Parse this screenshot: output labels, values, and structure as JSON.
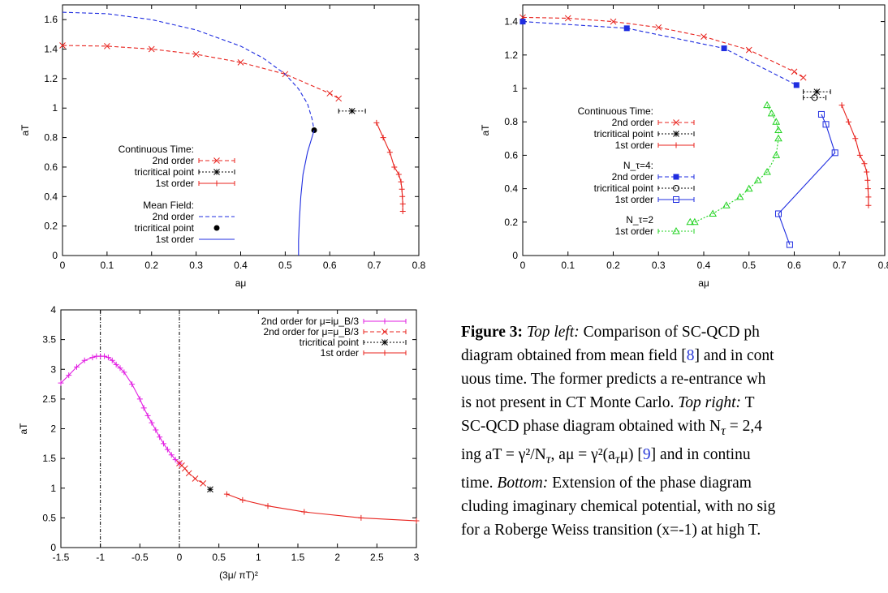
{
  "chart_data": [
    {
      "id": "topleft",
      "type": "line",
      "xlabel": "aμ",
      "ylabel": "aT",
      "xlim": [
        0,
        0.8
      ],
      "ylim": [
        0,
        1.7
      ],
      "xticks": [
        0,
        0.1,
        0.2,
        0.3,
        0.4,
        0.5,
        0.6,
        0.7,
        0.8
      ],
      "yticks": [
        0,
        0.2,
        0.4,
        0.6,
        0.8,
        1,
        1.2,
        1.4,
        1.6
      ],
      "legend_groups": [
        {
          "title": "Continuous Time:",
          "entries": [
            "2nd order",
            "tricritical point",
            "1st order"
          ]
        },
        {
          "title": "Mean Field:",
          "entries": [
            "2nd order",
            "tricritical point",
            "1st order"
          ]
        }
      ],
      "series": [
        {
          "name": "2nd order",
          "group": "Continuous Time",
          "color": "#e8231e",
          "style": "dashed",
          "marker": "x",
          "x": [
            0,
            0.1,
            0.2,
            0.3,
            0.4,
            0.5,
            0.6,
            0.62
          ],
          "y": [
            1.425,
            1.42,
            1.4,
            1.365,
            1.31,
            1.23,
            1.1,
            1.065
          ]
        },
        {
          "name": "tricritical point",
          "group": "Continuous Time",
          "color": "#000000",
          "style": "dotted",
          "marker": "star",
          "x": [
            0.65
          ],
          "y": [
            0.98
          ],
          "xerr": [
            0.03
          ]
        },
        {
          "name": "1st order",
          "group": "Continuous Time",
          "color": "#e8231e",
          "style": "solid",
          "marker": "plus",
          "x": [
            0.705,
            0.72,
            0.735,
            0.745,
            0.755,
            0.76,
            0.762,
            0.763,
            0.764,
            0.764
          ],
          "y": [
            0.9,
            0.8,
            0.7,
            0.6,
            0.55,
            0.5,
            0.45,
            0.4,
            0.35,
            0.3
          ]
        },
        {
          "name": "2nd order",
          "group": "Mean Field",
          "color": "#1f2de0",
          "style": "dashed",
          "marker": "none",
          "x": [
            0,
            0.1,
            0.2,
            0.3,
            0.4,
            0.45,
            0.5,
            0.53,
            0.55,
            0.56,
            0.565
          ],
          "y": [
            1.65,
            1.64,
            1.6,
            1.53,
            1.42,
            1.34,
            1.23,
            1.13,
            1.03,
            0.93,
            0.85
          ]
        },
        {
          "name": "tricritical point",
          "group": "Mean Field",
          "color": "#000000",
          "style": "none",
          "marker": "dot",
          "x": [
            0.565
          ],
          "y": [
            0.85
          ]
        },
        {
          "name": "1st order",
          "group": "Mean Field",
          "color": "#1f2de0",
          "style": "solid",
          "marker": "none",
          "x": [
            0.565,
            0.55,
            0.54,
            0.535,
            0.532,
            0.53,
            0.53
          ],
          "y": [
            0.85,
            0.7,
            0.55,
            0.4,
            0.25,
            0.1,
            0
          ]
        }
      ]
    },
    {
      "id": "topright",
      "type": "line",
      "xlabel": "aμ",
      "ylabel": "aT",
      "xlim": [
        0,
        0.8
      ],
      "ylim": [
        0,
        1.5
      ],
      "xticks": [
        0,
        0.1,
        0.2,
        0.3,
        0.4,
        0.5,
        0.6,
        0.7,
        0.8
      ],
      "yticks": [
        0,
        0.2,
        0.4,
        0.6,
        0.8,
        1,
        1.2,
        1.4
      ],
      "legend_groups": [
        {
          "title": "Continuous Time:",
          "entries": [
            "2nd order",
            "tricritical point",
            "1st order"
          ]
        },
        {
          "title": "N_τ=4:",
          "entries": [
            "2nd order",
            "tricritical point",
            "1st order"
          ]
        },
        {
          "title": "N_τ=2",
          "entries": [
            "1st order"
          ]
        }
      ],
      "series": [
        {
          "name": "2nd order",
          "group": "Continuous Time",
          "color": "#e8231e",
          "style": "dashed",
          "marker": "x",
          "x": [
            0,
            0.1,
            0.2,
            0.3,
            0.4,
            0.5,
            0.6,
            0.62
          ],
          "y": [
            1.425,
            1.42,
            1.4,
            1.365,
            1.31,
            1.23,
            1.1,
            1.065
          ]
        },
        {
          "name": "tricritical point",
          "group": "Continuous Time",
          "color": "#000000",
          "style": "dotted",
          "marker": "star",
          "x": [
            0.65
          ],
          "y": [
            0.98
          ],
          "xerr": [
            0.03
          ]
        },
        {
          "name": "1st order",
          "group": "Continuous Time",
          "color": "#e8231e",
          "style": "solid",
          "marker": "plus",
          "x": [
            0.705,
            0.72,
            0.735,
            0.745,
            0.755,
            0.76,
            0.762,
            0.763,
            0.764,
            0.764
          ],
          "y": [
            0.9,
            0.8,
            0.7,
            0.6,
            0.55,
            0.5,
            0.45,
            0.4,
            0.35,
            0.3
          ]
        },
        {
          "name": "2nd order",
          "group": "N_τ=4",
          "color": "#1f2de0",
          "style": "dashed",
          "marker": "filled-square",
          "x": [
            0,
            0.23,
            0.445,
            0.605
          ],
          "y": [
            1.4,
            1.36,
            1.24,
            1.02
          ]
        },
        {
          "name": "tricritical point",
          "group": "N_τ=4",
          "color": "#000000",
          "style": "dotted",
          "marker": "circle",
          "x": [
            0.645
          ],
          "y": [
            0.945
          ],
          "xerr": [
            0.025
          ]
        },
        {
          "name": "1st order",
          "group": "N_τ=4",
          "color": "#1f2de0",
          "style": "solid",
          "marker": "open-square",
          "x": [
            0.66,
            0.67,
            0.69,
            0.565,
            0.59
          ],
          "y": [
            0.845,
            0.785,
            0.615,
            0.25,
            0.065
          ]
        },
        {
          "name": "1st order",
          "group": "N_τ=2",
          "color": "#22d322",
          "style": "dotted",
          "marker": "triangle",
          "x": [
            0.54,
            0.55,
            0.56,
            0.565,
            0.565,
            0.56,
            0.54,
            0.52,
            0.5,
            0.48,
            0.45,
            0.42,
            0.38,
            0.37
          ],
          "y": [
            0.9,
            0.85,
            0.8,
            0.75,
            0.7,
            0.6,
            0.5,
            0.45,
            0.4,
            0.35,
            0.3,
            0.25,
            0.2,
            0.2
          ]
        }
      ]
    },
    {
      "id": "bottom",
      "type": "line",
      "xlabel": "(3μ/ πT)²",
      "ylabel": "aT",
      "xlim": [
        -1.5,
        3
      ],
      "ylim": [
        0,
        4
      ],
      "xticks": [
        -1.5,
        -1,
        -0.5,
        0,
        0.5,
        1,
        1.5,
        2,
        2.5,
        3
      ],
      "yticks": [
        0,
        0.5,
        1,
        1.5,
        2,
        2.5,
        3,
        3.5,
        4
      ],
      "vlines": [
        -1,
        0
      ],
      "legend": [
        "2nd order for μ=iμ_B/3",
        "2nd order for μ=μ_B/3",
        "tricritical point",
        "1st order"
      ],
      "series": [
        {
          "name": "2nd order for μ=iμ_B/3",
          "color": "#e21ee2",
          "style": "solid",
          "marker": "plus",
          "x": [
            -1.5,
            -1.4,
            -1.3,
            -1.2,
            -1.1,
            -1.05,
            -1.0,
            -0.95,
            -0.9,
            -0.85,
            -0.8,
            -0.75,
            -0.7,
            -0.6,
            -0.5,
            -0.45,
            -0.4,
            -0.35,
            -0.3,
            -0.25,
            -0.2,
            -0.15,
            -0.1,
            -0.05,
            0
          ],
          "y": [
            2.77,
            2.9,
            3.04,
            3.15,
            3.2,
            3.22,
            3.22,
            3.22,
            3.2,
            3.15,
            3.08,
            3.02,
            2.95,
            2.75,
            2.5,
            2.35,
            2.22,
            2.1,
            1.98,
            1.86,
            1.75,
            1.65,
            1.56,
            1.48,
            1.42
          ]
        },
        {
          "name": "2nd order for μ=μ_B/3",
          "color": "#e8231e",
          "style": "dashed",
          "marker": "x",
          "x": [
            0,
            0.03,
            0.07,
            0.12,
            0.2,
            0.3
          ],
          "y": [
            1.42,
            1.38,
            1.33,
            1.25,
            1.16,
            1.08
          ]
        },
        {
          "name": "tricritical point",
          "color": "#000000",
          "style": "dotted",
          "marker": "star",
          "x": [
            0.39
          ],
          "y": [
            0.98
          ]
        },
        {
          "name": "1st order",
          "color": "#e8231e",
          "style": "solid",
          "marker": "plus",
          "x": [
            0.6,
            0.8,
            1.12,
            1.58,
            2.3,
            3.0
          ],
          "y": [
            0.9,
            0.8,
            0.7,
            0.6,
            0.5,
            0.45
          ]
        }
      ]
    }
  ],
  "caption": {
    "label": "Figure 3:",
    "lines": [
      [
        "Top left:",
        " Comparison of SC-QCD ph"
      ],
      [
        "diagram obtained from mean field [",
        "8",
        "] and in cont"
      ],
      [
        "uous time.  The former predicts a re-entrance wh"
      ],
      [
        "is not present in CT Monte Carlo.  ",
        "Top right:",
        "  T"
      ],
      [
        "SC-QCD phase diagram obtained with N",
        "τ",
        " = 2,4"
      ],
      [
        "ing aT = γ²/N",
        "τ",
        ", aμ = γ²(a",
        "τ",
        "μ) [",
        "9",
        "] and in continu"
      ],
      [
        "time.  ",
        "Bottom:",
        "  Extension of the phase diagram"
      ],
      [
        "cluding imaginary chemical potential, with no sig"
      ],
      [
        "for a Roberge Weiss transition (x=-1) at high T."
      ]
    ]
  }
}
